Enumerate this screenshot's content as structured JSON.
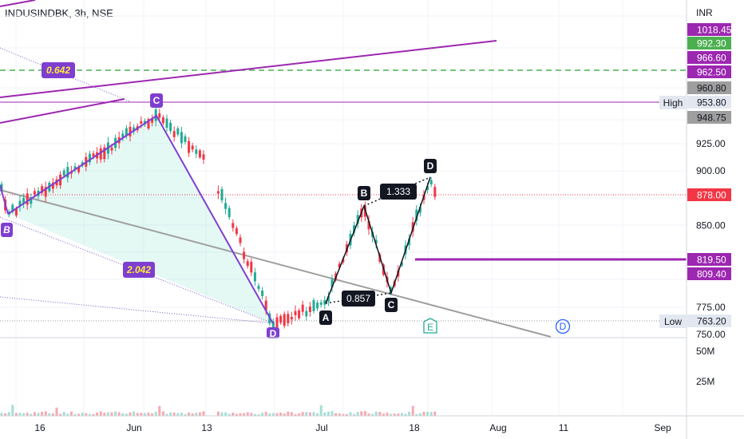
{
  "header": {
    "title": "INDUSINDBK, 3h, NSE"
  },
  "chart_data": {
    "type": "candlestick",
    "currency_label": "INR",
    "y_ticks": [
      "925.00",
      "900.00",
      "850.00",
      "775.00",
      "750.00"
    ],
    "volume_ticks": [
      "50M",
      "25M"
    ],
    "x_ticks": [
      "16",
      "Jun",
      "13",
      "Jul",
      "18",
      "Aug",
      "11",
      "Sep"
    ],
    "price_tags": [
      {
        "value": "1018.45",
        "bg": "#9c27b0",
        "fg": "#ffffff"
      },
      {
        "value": "992.30",
        "bg": "#4caf50",
        "fg": "#ffffff"
      },
      {
        "value": "966.60",
        "bg": "#9c27b0",
        "fg": "#ffffff"
      },
      {
        "value": "962.50",
        "bg": "#9c27b0",
        "fg": "#ffffff"
      },
      {
        "value": "960.80",
        "bg": "#9e9e9e",
        "fg": "#131722"
      },
      {
        "value": "953.80",
        "bg": "#e3e8f0",
        "fg": "#131722"
      },
      {
        "value": "948.75",
        "bg": "#9e9e9e",
        "fg": "#131722"
      },
      {
        "value": "878.00",
        "bg": "#f23645",
        "fg": "#ffffff"
      },
      {
        "value": "819.50",
        "bg": "#9c27b0",
        "fg": "#ffffff"
      },
      {
        "value": "809.40",
        "bg": "#9c27b0",
        "fg": "#ffffff"
      },
      {
        "value": "763.20",
        "bg": "#e3e8f0",
        "fg": "#131722"
      }
    ],
    "high_label": "High",
    "low_label": "Low",
    "last_price": 878.0,
    "high_price": 953.8,
    "low_price": 763.2,
    "ratios": [
      "0.642",
      "2.042",
      "1.333",
      "0.857"
    ],
    "pattern_left": [
      "B",
      "C",
      "D"
    ],
    "pattern_right": [
      "A",
      "B",
      "C",
      "D"
    ],
    "markers": [
      "E",
      "D"
    ],
    "colors": {
      "up": "#22ab94",
      "down": "#f23645",
      "pattern": "#9c27b0",
      "trend": "#9e9e9e",
      "target": "#4caf50"
    }
  }
}
